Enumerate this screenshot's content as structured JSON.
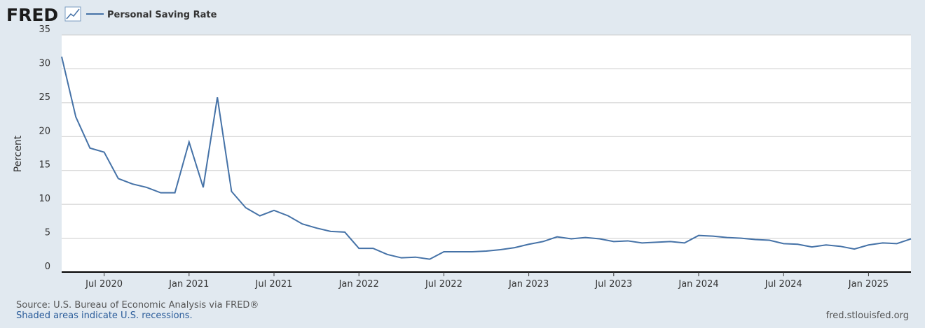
{
  "logo": "FRED",
  "chart_data": {
    "type": "line",
    "y_label": "Percent",
    "x": [
      "2020-04",
      "2020-05",
      "2020-06",
      "2020-07",
      "2020-08",
      "2020-09",
      "2020-10",
      "2020-11",
      "2020-12",
      "2021-01",
      "2021-02",
      "2021-03",
      "2021-04",
      "2021-05",
      "2021-06",
      "2021-07",
      "2021-08",
      "2021-09",
      "2021-10",
      "2021-11",
      "2021-12",
      "2022-01",
      "2022-02",
      "2022-03",
      "2022-04",
      "2022-05",
      "2022-06",
      "2022-07",
      "2022-08",
      "2022-09",
      "2022-10",
      "2022-11",
      "2022-12",
      "2023-01",
      "2023-02",
      "2023-03",
      "2023-04",
      "2023-05",
      "2023-06",
      "2023-07",
      "2023-08",
      "2023-09",
      "2023-10",
      "2023-11",
      "2023-12",
      "2024-01",
      "2024-02",
      "2024-03",
      "2024-04",
      "2024-05",
      "2024-06",
      "2024-07",
      "2024-08",
      "2024-09",
      "2024-10",
      "2024-11",
      "2024-12",
      "2025-01",
      "2025-02",
      "2025-03",
      "2025-04"
    ],
    "series": [
      {
        "name": "Personal Saving Rate",
        "color": "#4572a7",
        "values": [
          31.8,
          22.9,
          18.3,
          17.7,
          13.8,
          13.0,
          12.5,
          11.7,
          11.7,
          19.2,
          12.5,
          25.8,
          11.9,
          9.5,
          8.3,
          9.1,
          8.3,
          7.1,
          6.5,
          6.0,
          5.9,
          3.5,
          3.5,
          2.6,
          2.1,
          2.2,
          1.9,
          3.0,
          3.0,
          3.0,
          3.1,
          3.3,
          3.6,
          4.1,
          4.5,
          5.2,
          4.9,
          5.1,
          4.9,
          4.5,
          4.6,
          4.3,
          4.4,
          4.5,
          4.3,
          5.4,
          5.3,
          5.1,
          5.0,
          4.8,
          4.7,
          4.2,
          4.1,
          3.7,
          4.0,
          3.8,
          3.4,
          4.0,
          4.3,
          4.2,
          4.9
        ]
      }
    ],
    "xticks": [
      {
        "value": "2020-07",
        "label": "Jul 2020"
      },
      {
        "value": "2021-01",
        "label": "Jan 2021"
      },
      {
        "value": "2021-07",
        "label": "Jul 2021"
      },
      {
        "value": "2022-01",
        "label": "Jan 2022"
      },
      {
        "value": "2022-07",
        "label": "Jul 2022"
      },
      {
        "value": "2023-01",
        "label": "Jan 2023"
      },
      {
        "value": "2023-07",
        "label": "Jul 2023"
      },
      {
        "value": "2024-01",
        "label": "Jan 2024"
      },
      {
        "value": "2024-07",
        "label": "Jul 2024"
      },
      {
        "value": "2025-01",
        "label": "Jan 2025"
      }
    ],
    "ylim": [
      0,
      35
    ],
    "yticks": [
      0,
      5,
      10,
      15,
      20,
      25,
      30,
      35
    ],
    "grid": true
  },
  "source": "Source: U.S. Bureau of Economic Analysis via FRED®",
  "note": "Shaded areas indicate U.S. recessions.",
  "site": "fred.stlouisfed.org"
}
